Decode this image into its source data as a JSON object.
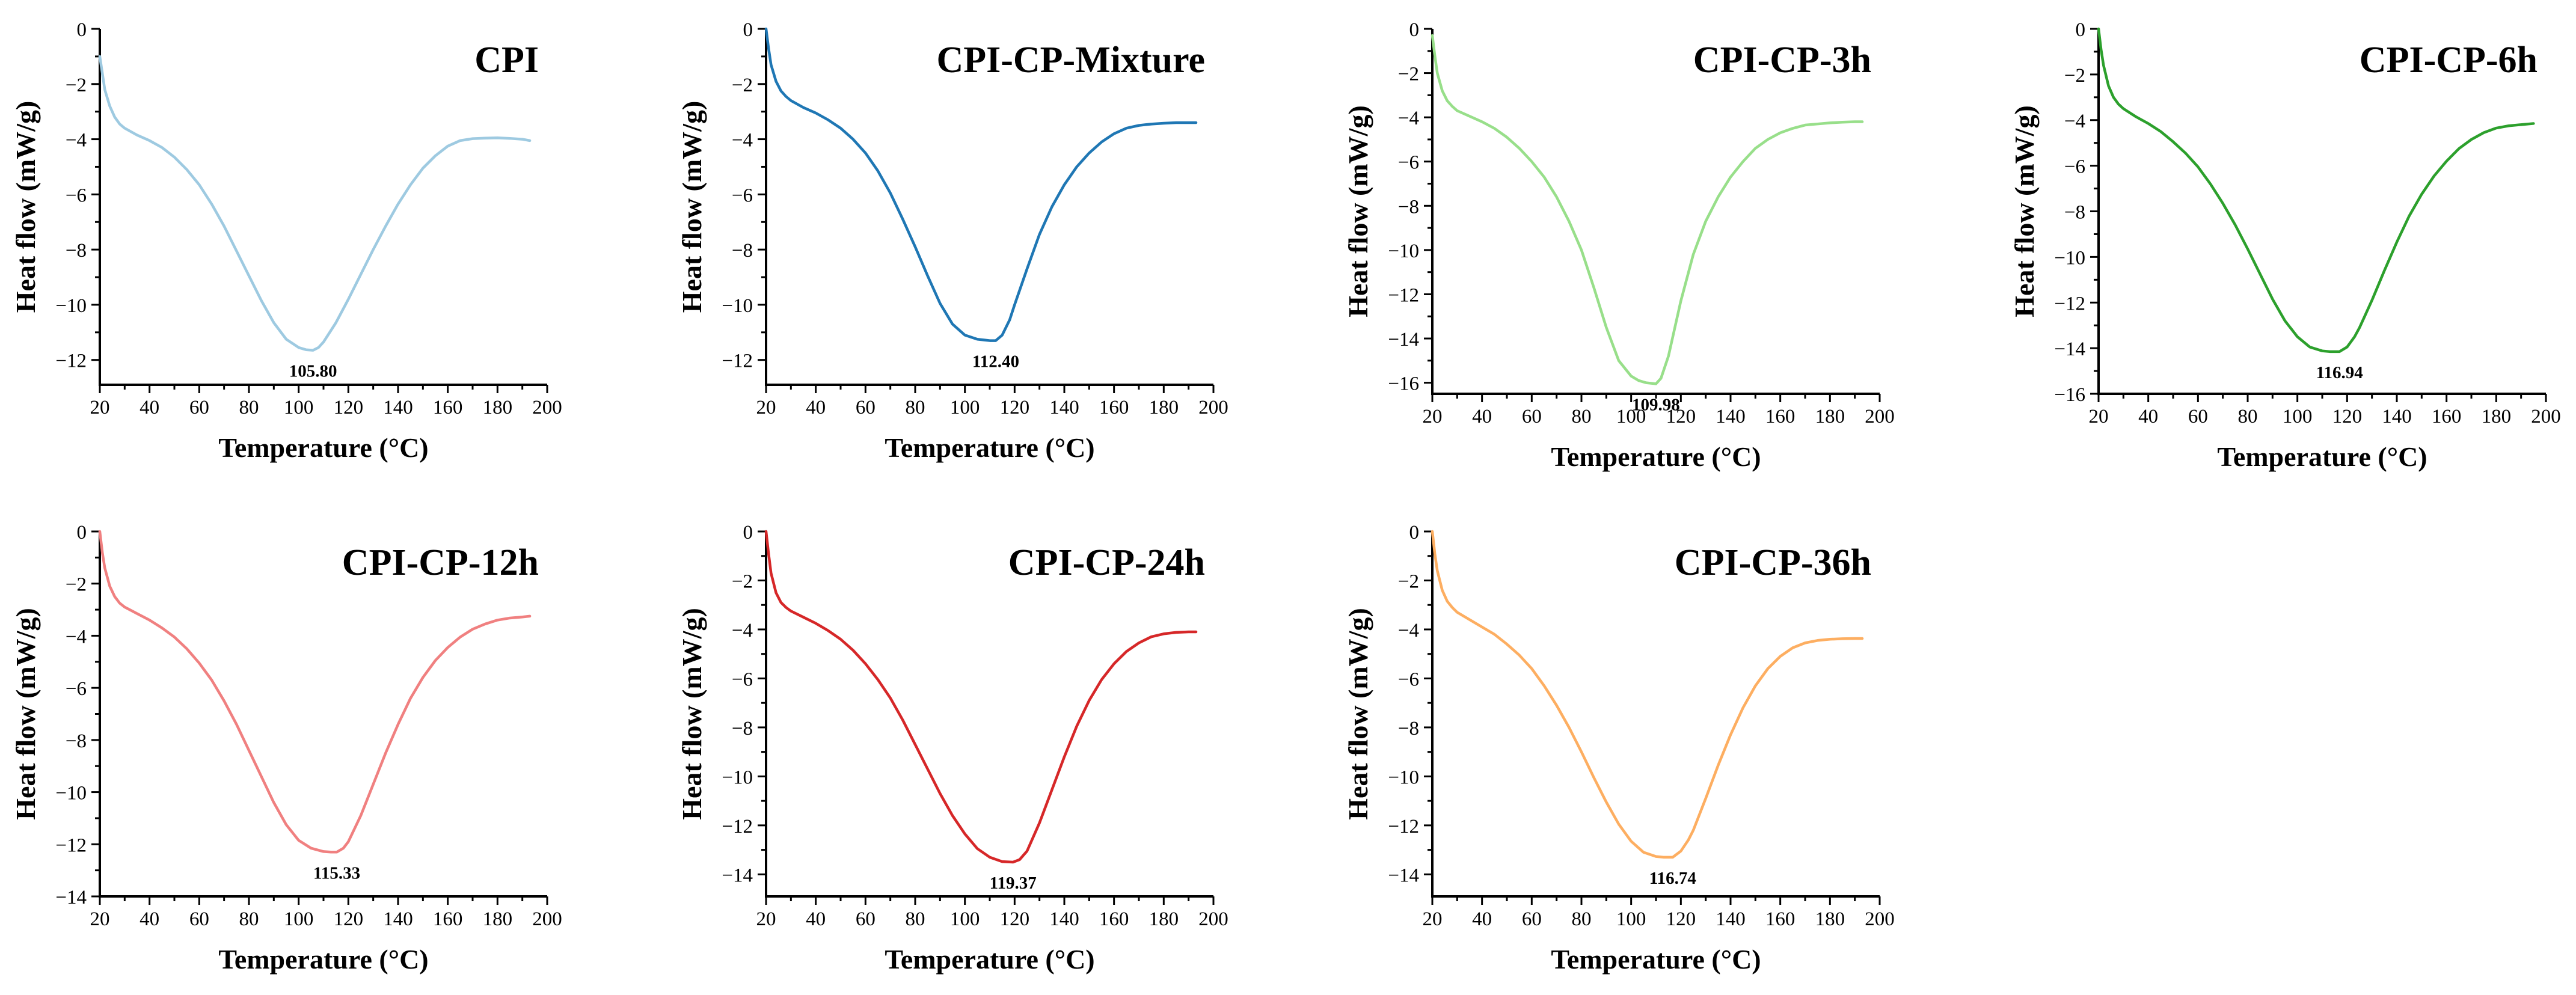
{
  "chart_data": [
    {
      "type": "line",
      "title": "CPI",
      "xlabel": "Temperature (°C)",
      "ylabel": "Heat flow (mW/g)",
      "xlim": [
        20,
        200
      ],
      "ylim": [
        -12.9,
        0
      ],
      "xticks": [
        20,
        40,
        60,
        80,
        100,
        120,
        140,
        160,
        180,
        200
      ],
      "yticks": [
        0,
        -2,
        -4,
        -6,
        -8,
        -10,
        -12
      ],
      "color": "#9ecae1",
      "peak": {
        "x": 105.8,
        "y": -11.65,
        "label": "105.80"
      },
      "series": [
        {
          "name": "CPI",
          "x": [
            20,
            21,
            22,
            24,
            26,
            28,
            30,
            35,
            40,
            45,
            50,
            55,
            60,
            65,
            70,
            75,
            80,
            85,
            90,
            95,
            100,
            103,
            105.8,
            108,
            110,
            115,
            120,
            125,
            130,
            135,
            140,
            145,
            150,
            155,
            160,
            165,
            170,
            175,
            180,
            185,
            190,
            193
          ],
          "y": [
            -1.0,
            -1.6,
            -2.2,
            -2.8,
            -3.2,
            -3.45,
            -3.6,
            -3.85,
            -4.05,
            -4.3,
            -4.65,
            -5.1,
            -5.65,
            -6.35,
            -7.15,
            -8.05,
            -8.95,
            -9.85,
            -10.65,
            -11.25,
            -11.55,
            -11.63,
            -11.65,
            -11.55,
            -11.35,
            -10.65,
            -9.8,
            -8.9,
            -8.0,
            -7.15,
            -6.35,
            -5.65,
            -5.05,
            -4.6,
            -4.25,
            -4.05,
            -3.98,
            -3.96,
            -3.95,
            -3.97,
            -4.0,
            -4.05
          ]
        }
      ]
    },
    {
      "type": "line",
      "title": "CPI-CP-Mixture",
      "xlabel": "Temperature (°C)",
      "ylabel": "Heat flow (mW/g)",
      "xlim": [
        20,
        200
      ],
      "ylim": [
        -12.9,
        0
      ],
      "xticks": [
        20,
        40,
        60,
        80,
        100,
        120,
        140,
        160,
        180,
        200
      ],
      "yticks": [
        0,
        -2,
        -4,
        -6,
        -8,
        -10,
        -12
      ],
      "color": "#1f77b4",
      "peak": {
        "x": 112.4,
        "y": -11.3,
        "label": "112.40"
      },
      "series": [
        {
          "name": "CPI-CP-Mixture",
          "x": [
            20,
            21,
            22,
            24,
            26,
            28,
            30,
            35,
            40,
            45,
            50,
            55,
            60,
            65,
            70,
            75,
            80,
            85,
            90,
            95,
            100,
            105,
            108,
            110,
            112.4,
            115,
            118,
            120,
            125,
            130,
            135,
            140,
            145,
            150,
            155,
            160,
            165,
            170,
            175,
            180,
            185,
            190,
            193
          ],
          "y": [
            0,
            -0.7,
            -1.3,
            -1.9,
            -2.25,
            -2.45,
            -2.6,
            -2.85,
            -3.05,
            -3.3,
            -3.6,
            -4.0,
            -4.5,
            -5.15,
            -5.95,
            -6.9,
            -7.9,
            -8.95,
            -9.95,
            -10.7,
            -11.1,
            -11.25,
            -11.28,
            -11.3,
            -11.3,
            -11.1,
            -10.55,
            -10.0,
            -8.7,
            -7.45,
            -6.45,
            -5.65,
            -5.0,
            -4.5,
            -4.1,
            -3.8,
            -3.6,
            -3.5,
            -3.45,
            -3.42,
            -3.4,
            -3.4,
            -3.4
          ]
        }
      ]
    },
    {
      "type": "line",
      "title": "CPI-CP-3h",
      "xlabel": "Temperature (°C)",
      "ylabel": "Heat flow (mW/g)",
      "xlim": [
        20,
        200
      ],
      "ylim": [
        -16.5,
        0
      ],
      "xticks": [
        20,
        40,
        60,
        80,
        100,
        120,
        140,
        160,
        180,
        200
      ],
      "yticks": [
        0,
        -2,
        -4,
        -6,
        -8,
        -10,
        -12,
        -14,
        -16
      ],
      "color": "#98df8a",
      "peak": {
        "x": 109.98,
        "y": -16.05,
        "label": "109.98"
      },
      "series": [
        {
          "name": "CPI-CP-3h",
          "x": [
            20,
            21,
            22,
            24,
            26,
            28,
            30,
            35,
            40,
            45,
            50,
            55,
            60,
            65,
            70,
            75,
            80,
            85,
            90,
            95,
            100,
            103,
            106,
            109.98,
            112,
            115,
            118,
            120,
            125,
            130,
            135,
            140,
            145,
            150,
            155,
            160,
            165,
            170,
            175,
            180,
            185,
            190,
            193
          ],
          "y": [
            -0.3,
            -1.2,
            -2.0,
            -2.8,
            -3.25,
            -3.5,
            -3.7,
            -3.95,
            -4.2,
            -4.5,
            -4.9,
            -5.4,
            -6.0,
            -6.7,
            -7.6,
            -8.7,
            -10.0,
            -11.7,
            -13.5,
            -15.0,
            -15.7,
            -15.9,
            -16.0,
            -16.05,
            -15.8,
            -14.8,
            -13.3,
            -12.3,
            -10.2,
            -8.7,
            -7.6,
            -6.7,
            -6.0,
            -5.4,
            -5.0,
            -4.7,
            -4.5,
            -4.35,
            -4.3,
            -4.25,
            -4.22,
            -4.2,
            -4.2
          ]
        }
      ]
    },
    {
      "type": "line",
      "title": "CPI-CP-6h",
      "xlabel": "Temperature (°C)",
      "ylabel": "Heat flow (mW/g)",
      "xlim": [
        20,
        200
      ],
      "ylim": [
        -16,
        0
      ],
      "xticks": [
        20,
        40,
        60,
        80,
        100,
        120,
        140,
        160,
        180,
        200
      ],
      "yticks": [
        0,
        -2,
        -4,
        -6,
        -8,
        -10,
        -12,
        -14,
        -16
      ],
      "color": "#2ca02c",
      "peak": {
        "x": 116.94,
        "y": -14.15,
        "label": "116.94"
      },
      "series": [
        {
          "name": "CPI-CP-6h",
          "x": [
            20,
            21,
            22,
            24,
            26,
            28,
            30,
            35,
            40,
            45,
            50,
            55,
            60,
            65,
            70,
            75,
            80,
            85,
            90,
            95,
            100,
            105,
            110,
            113,
            116.94,
            120,
            123,
            125,
            130,
            135,
            140,
            145,
            150,
            155,
            160,
            165,
            170,
            175,
            180,
            185,
            190,
            195
          ],
          "y": [
            0,
            -0.9,
            -1.6,
            -2.5,
            -3.0,
            -3.3,
            -3.5,
            -3.85,
            -4.15,
            -4.5,
            -4.95,
            -5.45,
            -6.05,
            -6.8,
            -7.65,
            -8.6,
            -9.65,
            -10.75,
            -11.85,
            -12.8,
            -13.5,
            -13.95,
            -14.12,
            -14.15,
            -14.15,
            -13.95,
            -13.5,
            -13.1,
            -11.9,
            -10.6,
            -9.35,
            -8.2,
            -7.25,
            -6.45,
            -5.8,
            -5.25,
            -4.85,
            -4.55,
            -4.35,
            -4.25,
            -4.2,
            -4.15
          ]
        }
      ]
    },
    {
      "type": "line",
      "title": "CPI-CP-12h",
      "xlabel": "Temperature (°C)",
      "ylabel": "Heat flow (mW/g)",
      "xlim": [
        20,
        200
      ],
      "ylim": [
        -14,
        0
      ],
      "xticks": [
        20,
        40,
        60,
        80,
        100,
        120,
        140,
        160,
        180,
        200
      ],
      "yticks": [
        0,
        -2,
        -4,
        -6,
        -8,
        -10,
        -12,
        -14
      ],
      "color": "#f08080",
      "peak": {
        "x": 115.33,
        "y": -12.3,
        "label": "115.33"
      },
      "series": [
        {
          "name": "CPI-CP-12h",
          "x": [
            20,
            21,
            22,
            24,
            26,
            28,
            30,
            35,
            40,
            45,
            50,
            55,
            60,
            65,
            70,
            75,
            80,
            85,
            90,
            95,
            100,
            105,
            110,
            113,
            115.33,
            118,
            120,
            125,
            130,
            135,
            140,
            145,
            150,
            155,
            160,
            165,
            170,
            175,
            180,
            185,
            190,
            193
          ],
          "y": [
            0,
            -0.8,
            -1.4,
            -2.1,
            -2.5,
            -2.75,
            -2.9,
            -3.15,
            -3.4,
            -3.7,
            -4.05,
            -4.5,
            -5.05,
            -5.7,
            -6.5,
            -7.4,
            -8.4,
            -9.4,
            -10.4,
            -11.25,
            -11.85,
            -12.15,
            -12.28,
            -12.3,
            -12.3,
            -12.15,
            -11.9,
            -10.9,
            -9.7,
            -8.5,
            -7.4,
            -6.4,
            -5.6,
            -4.95,
            -4.45,
            -4.05,
            -3.75,
            -3.55,
            -3.4,
            -3.32,
            -3.28,
            -3.25
          ]
        }
      ]
    },
    {
      "type": "line",
      "title": "CPI-CP-24h",
      "xlabel": "Temperature (°C)",
      "ylabel": "Heat flow (mW/g)",
      "xlim": [
        20,
        200
      ],
      "ylim": [
        -14.9,
        0
      ],
      "xticks": [
        20,
        40,
        60,
        80,
        100,
        120,
        140,
        160,
        180,
        200
      ],
      "yticks": [
        0,
        -2,
        -4,
        -6,
        -8,
        -10,
        -12,
        -14
      ],
      "color": "#d62728",
      "peak": {
        "x": 119.37,
        "y": -13.5,
        "label": "119.37"
      },
      "series": [
        {
          "name": "CPI-CP-24h",
          "x": [
            20,
            21,
            22,
            24,
            26,
            28,
            30,
            35,
            40,
            45,
            50,
            55,
            60,
            65,
            70,
            75,
            80,
            85,
            90,
            95,
            100,
            105,
            110,
            115,
            119.37,
            122,
            125,
            130,
            135,
            140,
            145,
            150,
            155,
            160,
            165,
            170,
            175,
            180,
            185,
            190,
            193
          ],
          "y": [
            0,
            -0.9,
            -1.7,
            -2.5,
            -2.9,
            -3.1,
            -3.25,
            -3.5,
            -3.75,
            -4.05,
            -4.4,
            -4.85,
            -5.4,
            -6.05,
            -6.8,
            -7.7,
            -8.7,
            -9.7,
            -10.7,
            -11.6,
            -12.35,
            -12.95,
            -13.3,
            -13.48,
            -13.5,
            -13.4,
            -13.05,
            -11.9,
            -10.55,
            -9.2,
            -7.95,
            -6.9,
            -6.05,
            -5.4,
            -4.9,
            -4.55,
            -4.3,
            -4.18,
            -4.12,
            -4.1,
            -4.1
          ]
        }
      ]
    },
    {
      "type": "line",
      "title": "CPI-CP-36h",
      "xlabel": "Temperature (°C)",
      "ylabel": "Heat flow (mW/g)",
      "xlim": [
        20,
        200
      ],
      "ylim": [
        -14.9,
        0
      ],
      "xticks": [
        20,
        40,
        60,
        80,
        100,
        120,
        140,
        160,
        180,
        200
      ],
      "yticks": [
        0,
        -2,
        -4,
        -6,
        -8,
        -10,
        -12,
        -14
      ],
      "color": "#fdae61",
      "peak": {
        "x": 116.74,
        "y": -13.3,
        "label": "116.74"
      },
      "series": [
        {
          "name": "CPI-CP-36h",
          "x": [
            20,
            21,
            22,
            24,
            26,
            28,
            30,
            35,
            40,
            45,
            50,
            55,
            60,
            65,
            70,
            75,
            80,
            85,
            90,
            95,
            100,
            105,
            110,
            113,
            116.74,
            120,
            123,
            125,
            130,
            135,
            140,
            145,
            150,
            155,
            160,
            165,
            170,
            175,
            180,
            185,
            190,
            193
          ],
          "y": [
            0,
            -0.9,
            -1.6,
            -2.4,
            -2.85,
            -3.1,
            -3.3,
            -3.6,
            -3.9,
            -4.2,
            -4.6,
            -5.05,
            -5.6,
            -6.3,
            -7.1,
            -8.0,
            -9.0,
            -10.05,
            -11.05,
            -11.95,
            -12.65,
            -13.1,
            -13.27,
            -13.3,
            -13.3,
            -13.05,
            -12.6,
            -12.2,
            -10.9,
            -9.55,
            -8.3,
            -7.2,
            -6.3,
            -5.6,
            -5.1,
            -4.75,
            -4.55,
            -4.45,
            -4.4,
            -4.38,
            -4.37,
            -4.37
          ]
        }
      ]
    }
  ]
}
